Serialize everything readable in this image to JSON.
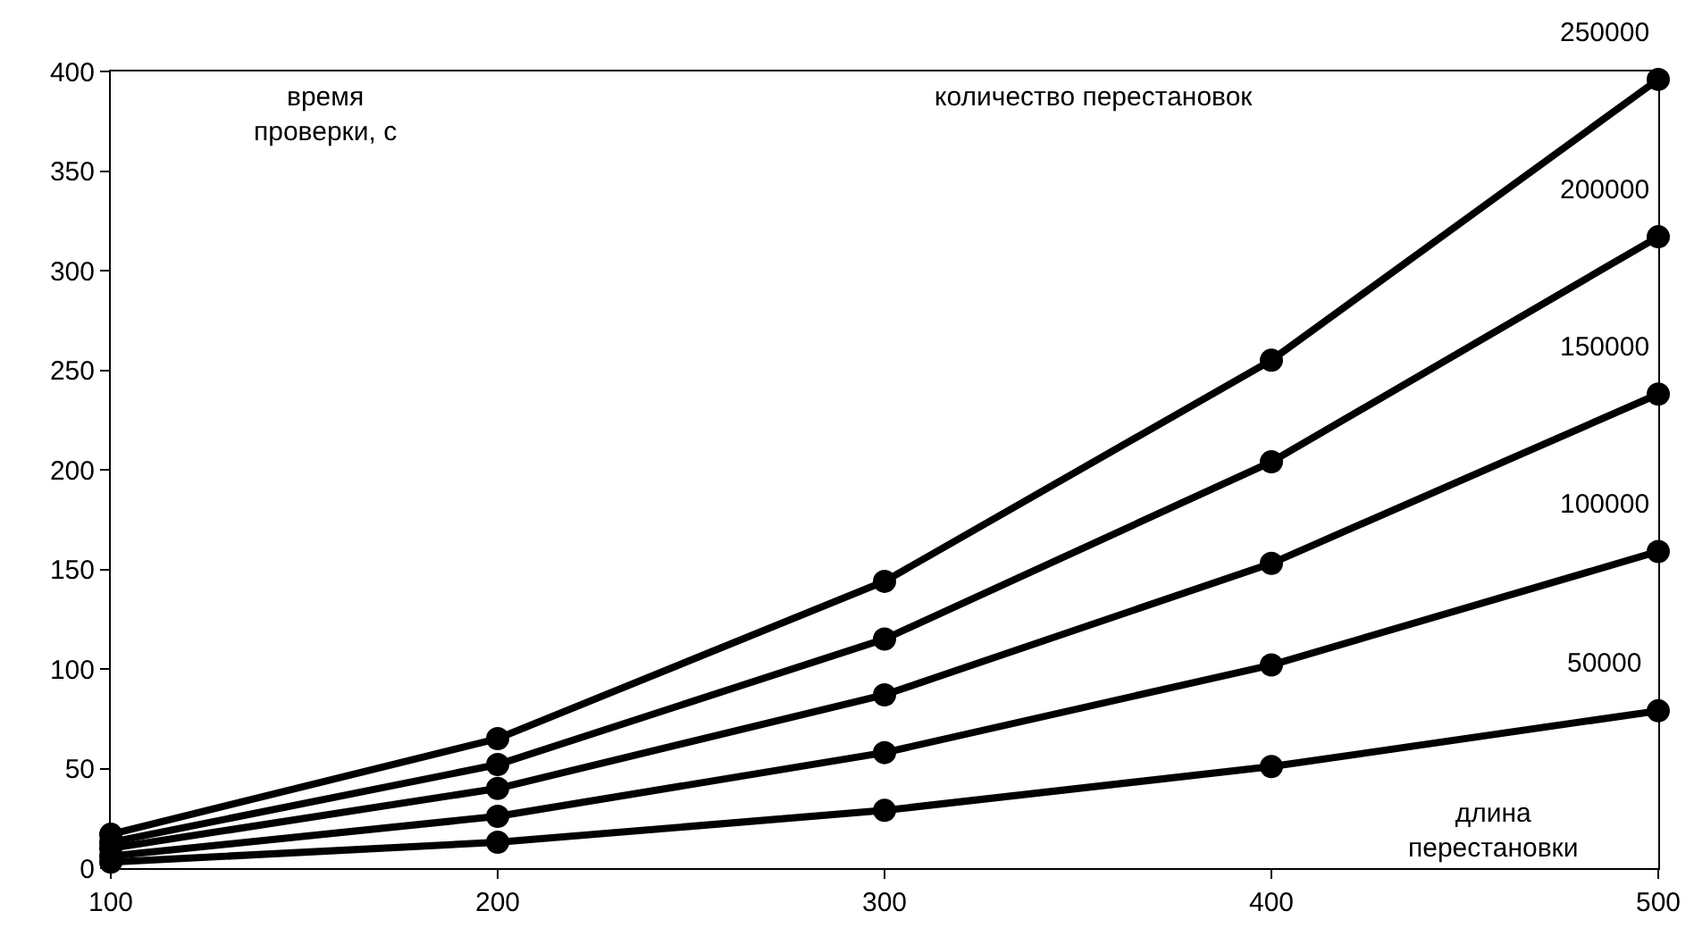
{
  "chart_data": {
    "type": "line",
    "xlabel": "длина\nперестановки",
    "ylabel": "время\nпроверки, с",
    "legend_title": "количество перестановок",
    "x": [
      100,
      200,
      300,
      400,
      500
    ],
    "series": [
      {
        "name": "250000",
        "color": "#000000",
        "values": [
          17,
          65,
          144,
          255,
          396
        ]
      },
      {
        "name": "200000",
        "color": "#000000",
        "values": [
          13,
          52,
          115,
          204,
          317
        ]
      },
      {
        "name": "150000",
        "color": "#000000",
        "values": [
          10,
          40,
          87,
          153,
          238
        ]
      },
      {
        "name": "100000",
        "color": "#000000",
        "values": [
          6,
          26,
          58,
          102,
          159
        ]
      },
      {
        "name": "50000",
        "color": "#000000",
        "values": [
          3,
          13,
          29,
          51,
          79
        ]
      }
    ],
    "xlim": [
      100,
      500
    ],
    "xticks": [
      100,
      200,
      300,
      400,
      500
    ],
    "ylim": [
      0,
      400
    ],
    "yticks": [
      0,
      50,
      100,
      150,
      200,
      250,
      300,
      350,
      400
    ],
    "grid": false,
    "legend": false,
    "marker": "circle",
    "line_style": "solid"
  }
}
